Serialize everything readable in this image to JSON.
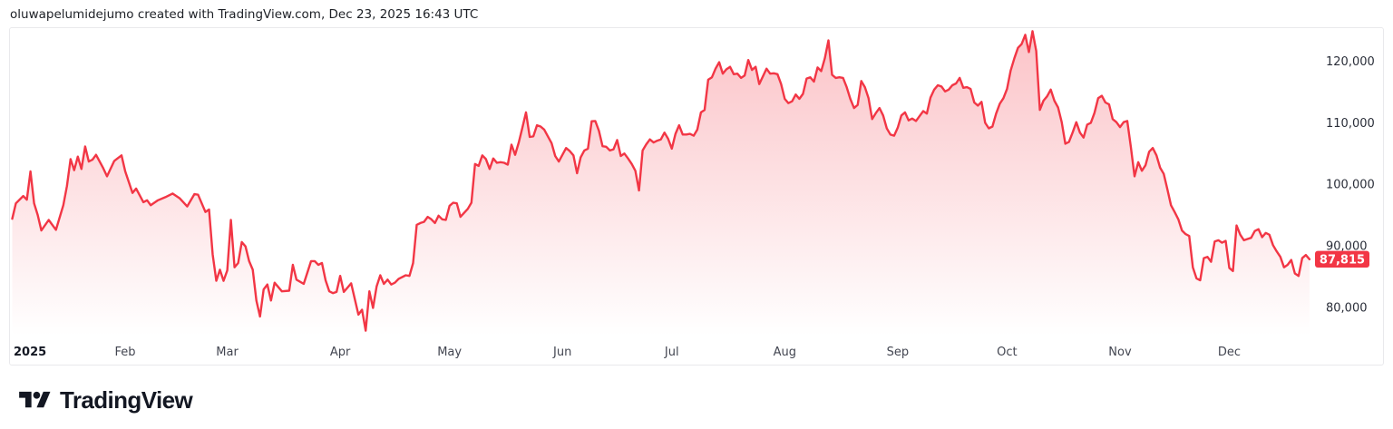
{
  "header": {
    "attribution": "oluwapelumidejumo created with TradingView.com, Dec 23, 2025 16:43 UTC"
  },
  "footer": {
    "brand": "TradingView",
    "logo_icon": "tradingview-logo"
  },
  "chart_data": {
    "type": "area",
    "year": 2025,
    "grid": "off",
    "legend": "none",
    "colors": {
      "line": "#f23645",
      "fill_top": "rgba(242,54,69,0.30)",
      "fill_bottom": "rgba(242,54,69,0)",
      "badge_bg": "#f23645",
      "badge_text": "#ffffff",
      "x_label": "#434651",
      "y_label": "#2a2e39",
      "year_label": "#131722"
    },
    "last_price": {
      "label": "87,815",
      "value": 87815
    },
    "y_axis": {
      "side": "right",
      "ylim": [
        75200,
        125200
      ],
      "ticks": [
        {
          "label": "120,000",
          "value": 120000
        },
        {
          "label": "110,000",
          "value": 110000
        },
        {
          "label": "100,000",
          "value": 100000
        },
        {
          "label": "90,000",
          "value": 90000
        },
        {
          "label": "80,000",
          "value": 80000
        }
      ]
    },
    "x_axis": {
      "ticks": [
        {
          "label": "2025",
          "date": "01-01",
          "bold": true,
          "align": "start"
        },
        {
          "label": "Feb",
          "date": "02-01"
        },
        {
          "label": "Mar",
          "date": "03-01"
        },
        {
          "label": "Apr",
          "date": "04-01"
        },
        {
          "label": "May",
          "date": "05-01"
        },
        {
          "label": "Jun",
          "date": "06-01"
        },
        {
          "label": "Jul",
          "date": "07-01"
        },
        {
          "label": "Aug",
          "date": "08-01"
        },
        {
          "label": "Sep",
          "date": "09-01"
        },
        {
          "label": "Oct",
          "date": "10-01"
        },
        {
          "label": "Nov",
          "date": "11-01"
        },
        {
          "label": "Dec",
          "date": "12-01"
        }
      ]
    },
    "series": [
      [
        "01-01",
        94400
      ],
      [
        "01-02",
        96900
      ],
      [
        "01-04",
        98100
      ],
      [
        "01-05",
        97500
      ],
      [
        "01-06",
        102100
      ],
      [
        "01-07",
        96900
      ],
      [
        "01-08",
        95000
      ],
      [
        "01-09",
        92500
      ],
      [
        "01-11",
        94200
      ],
      [
        "01-13",
        92600
      ],
      [
        "01-15",
        96600
      ],
      [
        "01-16",
        99700
      ],
      [
        "01-17",
        104100
      ],
      [
        "01-18",
        102300
      ],
      [
        "01-19",
        104500
      ],
      [
        "01-20",
        102500
      ],
      [
        "01-21",
        106150
      ],
      [
        "01-22",
        103700
      ],
      [
        "01-23",
        104000
      ],
      [
        "01-24",
        104800
      ],
      [
        "01-26",
        102600
      ],
      [
        "01-27",
        101300
      ],
      [
        "01-29",
        103800
      ],
      [
        "01-31",
        104700
      ],
      [
        "02-01",
        102100
      ],
      [
        "02-03",
        98600
      ],
      [
        "02-04",
        99300
      ],
      [
        "02-06",
        97100
      ],
      [
        "02-07",
        97400
      ],
      [
        "02-08",
        96600
      ],
      [
        "02-10",
        97400
      ],
      [
        "02-12",
        97900
      ],
      [
        "02-14",
        98500
      ],
      [
        "02-16",
        97700
      ],
      [
        "02-18",
        96400
      ],
      [
        "02-20",
        98400
      ],
      [
        "02-21",
        98300
      ],
      [
        "02-23",
        95500
      ],
      [
        "02-24",
        95900
      ],
      [
        "02-25",
        88600
      ],
      [
        "02-26",
        84300
      ],
      [
        "02-27",
        86100
      ],
      [
        "02-28",
        84300
      ],
      [
        "03-01",
        86000
      ],
      [
        "03-02",
        94200
      ],
      [
        "03-03",
        86500
      ],
      [
        "03-04",
        87200
      ],
      [
        "03-05",
        90600
      ],
      [
        "03-06",
        89900
      ],
      [
        "03-07",
        87500
      ],
      [
        "03-08",
        86100
      ],
      [
        "03-09",
        81100
      ],
      [
        "03-10",
        78500
      ],
      [
        "03-11",
        82900
      ],
      [
        "03-12",
        83700
      ],
      [
        "03-13",
        81100
      ],
      [
        "03-14",
        84000
      ],
      [
        "03-16",
        82600
      ],
      [
        "03-18",
        82700
      ],
      [
        "03-19",
        86900
      ],
      [
        "03-20",
        84500
      ],
      [
        "03-22",
        83800
      ],
      [
        "03-24",
        87500
      ],
      [
        "03-25",
        87500
      ],
      [
        "03-26",
        86900
      ],
      [
        "03-27",
        87200
      ],
      [
        "03-28",
        84400
      ],
      [
        "03-29",
        82600
      ],
      [
        "03-30",
        82300
      ],
      [
        "03-31",
        82500
      ],
      [
        "04-01",
        85100
      ],
      [
        "04-02",
        82500
      ],
      [
        "04-03",
        83200
      ],
      [
        "04-04",
        83900
      ],
      [
        "04-06",
        78800
      ],
      [
        "04-07",
        79600
      ],
      [
        "04-08",
        76200
      ],
      [
        "04-09",
        82600
      ],
      [
        "04-10",
        79900
      ],
      [
        "04-11",
        83400
      ],
      [
        "04-12",
        85200
      ],
      [
        "04-13",
        83800
      ],
      [
        "04-14",
        84500
      ],
      [
        "04-15",
        83700
      ],
      [
        "04-16",
        84000
      ],
      [
        "04-17",
        84600
      ],
      [
        "04-19",
        85200
      ],
      [
        "04-20",
        85100
      ],
      [
        "04-21",
        87200
      ],
      [
        "04-22",
        93400
      ],
      [
        "04-23",
        93700
      ],
      [
        "04-24",
        93900
      ],
      [
        "04-25",
        94700
      ],
      [
        "04-26",
        94300
      ],
      [
        "04-27",
        93700
      ],
      [
        "04-28",
        94900
      ],
      [
        "04-29",
        94300
      ],
      [
        "04-30",
        94200
      ],
      [
        "05-01",
        96500
      ],
      [
        "05-02",
        97000
      ],
      [
        "05-03",
        96900
      ],
      [
        "05-04",
        94700
      ],
      [
        "05-06",
        96000
      ],
      [
        "05-07",
        97000
      ],
      [
        "05-08",
        103300
      ],
      [
        "05-09",
        103000
      ],
      [
        "05-10",
        104700
      ],
      [
        "05-11",
        104100
      ],
      [
        "05-12",
        102500
      ],
      [
        "05-13",
        104200
      ],
      [
        "05-14",
        103500
      ],
      [
        "05-15",
        103600
      ],
      [
        "05-16",
        103500
      ],
      [
        "05-17",
        103200
      ],
      [
        "05-18",
        106450
      ],
      [
        "05-19",
        104800
      ],
      [
        "05-20",
        106800
      ],
      [
        "05-21",
        109200
      ],
      [
        "05-22",
        111700
      ],
      [
        "05-23",
        107700
      ],
      [
        "05-24",
        107800
      ],
      [
        "05-25",
        109600
      ],
      [
        "05-26",
        109400
      ],
      [
        "05-27",
        108900
      ],
      [
        "05-28",
        107800
      ],
      [
        "05-29",
        106700
      ],
      [
        "05-30",
        104600
      ],
      [
        "05-31",
        103700
      ],
      [
        "06-02",
        105900
      ],
      [
        "06-03",
        105400
      ],
      [
        "06-04",
        104700
      ],
      [
        "06-05",
        101800
      ],
      [
        "06-06",
        104400
      ],
      [
        "06-07",
        105500
      ],
      [
        "06-08",
        105800
      ],
      [
        "06-09",
        110250
      ],
      [
        "06-10",
        110300
      ],
      [
        "06-11",
        108700
      ],
      [
        "06-12",
        106200
      ],
      [
        "06-13",
        106100
      ],
      [
        "06-14",
        105500
      ],
      [
        "06-15",
        105700
      ],
      [
        "06-16",
        107200
      ],
      [
        "06-17",
        104600
      ],
      [
        "06-18",
        105000
      ],
      [
        "06-19",
        104200
      ],
      [
        "06-20",
        103300
      ],
      [
        "06-21",
        102200
      ],
      [
        "06-22",
        99000
      ],
      [
        "06-23",
        105500
      ],
      [
        "06-24",
        106500
      ],
      [
        "06-25",
        107300
      ],
      [
        "06-26",
        106800
      ],
      [
        "06-27",
        107100
      ],
      [
        "06-28",
        107300
      ],
      [
        "06-29",
        108400
      ],
      [
        "06-30",
        107400
      ],
      [
        "07-01",
        105800
      ],
      [
        "07-02",
        108200
      ],
      [
        "07-03",
        109600
      ],
      [
        "07-04",
        108100
      ],
      [
        "07-05",
        108100
      ],
      [
        "07-06",
        108200
      ],
      [
        "07-07",
        107900
      ],
      [
        "07-08",
        108900
      ],
      [
        "07-09",
        111700
      ],
      [
        "07-10",
        112100
      ],
      [
        "07-11",
        117000
      ],
      [
        "07-12",
        117400
      ],
      [
        "07-13",
        118800
      ],
      [
        "07-14",
        119850
      ],
      [
        "07-15",
        118000
      ],
      [
        "07-16",
        118700
      ],
      [
        "07-17",
        119100
      ],
      [
        "07-18",
        117900
      ],
      [
        "07-19",
        118000
      ],
      [
        "07-20",
        117300
      ],
      [
        "07-21",
        117700
      ],
      [
        "07-22",
        120200
      ],
      [
        "07-23",
        118600
      ],
      [
        "07-24",
        119100
      ],
      [
        "07-25",
        116300
      ],
      [
        "07-27",
        118800
      ],
      [
        "07-28",
        118000
      ],
      [
        "07-29",
        118050
      ],
      [
        "07-30",
        117900
      ],
      [
        "07-31",
        116300
      ],
      [
        "08-01",
        113900
      ],
      [
        "08-02",
        113200
      ],
      [
        "08-03",
        113500
      ],
      [
        "08-04",
        114600
      ],
      [
        "08-05",
        113900
      ],
      [
        "08-06",
        114700
      ],
      [
        "08-07",
        117200
      ],
      [
        "08-08",
        117400
      ],
      [
        "08-09",
        116700
      ],
      [
        "08-10",
        119000
      ],
      [
        "08-11",
        118400
      ],
      [
        "08-12",
        120500
      ],
      [
        "08-13",
        123400
      ],
      [
        "08-14",
        117800
      ],
      [
        "08-15",
        117300
      ],
      [
        "08-16",
        117400
      ],
      [
        "08-17",
        117300
      ],
      [
        "08-18",
        115800
      ],
      [
        "08-19",
        113900
      ],
      [
        "08-20",
        112400
      ],
      [
        "08-21",
        112900
      ],
      [
        "08-22",
        116800
      ],
      [
        "08-23",
        115800
      ],
      [
        "08-24",
        114000
      ],
      [
        "08-25",
        110600
      ],
      [
        "08-26",
        111600
      ],
      [
        "08-27",
        112400
      ],
      [
        "08-28",
        111200
      ],
      [
        "08-29",
        109100
      ],
      [
        "08-30",
        108100
      ],
      [
        "08-31",
        107900
      ],
      [
        "09-01",
        109200
      ],
      [
        "09-02",
        111200
      ],
      [
        "09-03",
        111700
      ],
      [
        "09-04",
        110400
      ],
      [
        "09-05",
        110700
      ],
      [
        "09-06",
        110300
      ],
      [
        "09-07",
        111100
      ],
      [
        "09-08",
        111900
      ],
      [
        "09-09",
        111500
      ],
      [
        "09-10",
        114100
      ],
      [
        "09-11",
        115400
      ],
      [
        "09-12",
        116100
      ],
      [
        "09-13",
        115900
      ],
      [
        "09-14",
        115100
      ],
      [
        "09-15",
        115400
      ],
      [
        "09-16",
        116100
      ],
      [
        "09-17",
        116400
      ],
      [
        "09-18",
        117300
      ],
      [
        "09-19",
        115700
      ],
      [
        "09-20",
        115800
      ],
      [
        "09-21",
        115500
      ],
      [
        "09-22",
        113300
      ],
      [
        "09-23",
        112800
      ],
      [
        "09-24",
        113400
      ],
      [
        "09-25",
        110000
      ],
      [
        "09-26",
        109100
      ],
      [
        "09-27",
        109400
      ],
      [
        "09-28",
        111500
      ],
      [
        "09-29",
        113100
      ],
      [
        "09-30",
        114000
      ],
      [
        "10-01",
        115500
      ],
      [
        "10-02",
        118500
      ],
      [
        "10-03",
        120500
      ],
      [
        "10-04",
        122200
      ],
      [
        "10-05",
        122800
      ],
      [
        "10-06",
        124300
      ],
      [
        "10-07",
        121500
      ],
      [
        "10-08",
        124900
      ],
      [
        "10-09",
        121700
      ],
      [
        "10-10",
        112100
      ],
      [
        "10-11",
        113600
      ],
      [
        "10-12",
        114300
      ],
      [
        "10-13",
        115400
      ],
      [
        "10-14",
        113600
      ],
      [
        "10-15",
        112500
      ],
      [
        "10-16",
        110100
      ],
      [
        "10-17",
        106600
      ],
      [
        "10-18",
        106900
      ],
      [
        "10-19",
        108400
      ],
      [
        "10-20",
        110100
      ],
      [
        "10-21",
        108400
      ],
      [
        "10-22",
        107600
      ],
      [
        "10-23",
        109700
      ],
      [
        "10-24",
        110000
      ],
      [
        "10-25",
        111600
      ],
      [
        "10-26",
        114000
      ],
      [
        "10-27",
        114400
      ],
      [
        "10-28",
        113300
      ],
      [
        "10-29",
        113000
      ],
      [
        "10-30",
        110600
      ],
      [
        "10-31",
        110100
      ],
      [
        "11-01",
        109300
      ],
      [
        "11-02",
        110100
      ],
      [
        "11-03",
        110300
      ],
      [
        "11-04",
        106000
      ],
      [
        "11-05",
        101300
      ],
      [
        "11-06",
        103600
      ],
      [
        "11-07",
        102200
      ],
      [
        "11-08",
        103100
      ],
      [
        "11-09",
        105300
      ],
      [
        "11-10",
        105900
      ],
      [
        "11-11",
        104700
      ],
      [
        "11-12",
        102700
      ],
      [
        "11-13",
        101700
      ],
      [
        "11-14",
        99200
      ],
      [
        "11-15",
        96600
      ],
      [
        "11-16",
        95500
      ],
      [
        "11-17",
        94300
      ],
      [
        "11-18",
        92500
      ],
      [
        "11-19",
        91900
      ],
      [
        "11-20",
        91600
      ],
      [
        "11-21",
        86500
      ],
      [
        "11-22",
        84700
      ],
      [
        "11-23",
        84400
      ],
      [
        "11-24",
        88000
      ],
      [
        "11-25",
        88200
      ],
      [
        "11-26",
        87400
      ],
      [
        "11-27",
        90700
      ],
      [
        "11-28",
        90900
      ],
      [
        "11-29",
        90500
      ],
      [
        "11-30",
        90800
      ],
      [
        "12-01",
        86400
      ],
      [
        "12-02",
        85900
      ],
      [
        "12-03",
        93300
      ],
      [
        "12-04",
        91800
      ],
      [
        "12-05",
        90900
      ],
      [
        "12-06",
        91100
      ],
      [
        "12-07",
        91300
      ],
      [
        "12-08",
        92400
      ],
      [
        "12-09",
        92700
      ],
      [
        "12-10",
        91400
      ],
      [
        "12-11",
        92100
      ],
      [
        "12-12",
        91800
      ],
      [
        "12-13",
        90100
      ],
      [
        "12-14",
        89100
      ],
      [
        "12-15",
        88200
      ],
      [
        "12-16",
        86500
      ],
      [
        "12-17",
        86900
      ],
      [
        "12-18",
        87700
      ],
      [
        "12-19",
        85500
      ],
      [
        "12-20",
        85100
      ],
      [
        "12-21",
        88000
      ],
      [
        "12-22",
        88500
      ],
      [
        "12-23",
        87815
      ]
    ]
  }
}
